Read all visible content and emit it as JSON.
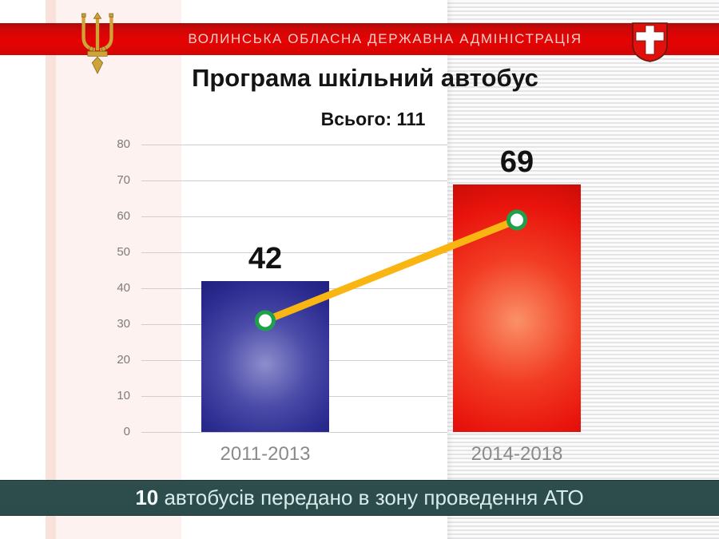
{
  "header": {
    "banner_text": "ВОЛИНСЬКА ОБЛАСНА ДЕРЖАВНА АДМІНІСТРАЦІЯ",
    "banner_color": "#d90505",
    "banner_text_color": "#f2cfc9",
    "trident_icon": "ukrainian-trident-gold",
    "coat_of_arms_icon": "volyn-shield-white-cross-on-red",
    "gold_color": "#d2a63c",
    "shield_red": "#e2100a"
  },
  "title": "Програма шкільний автобус",
  "subtitle": "Всього: 111",
  "chart_data": {
    "type": "bar",
    "categories": [
      "2011-2013",
      "2014-2018"
    ],
    "values": [
      42,
      69
    ],
    "value_labels": [
      "42",
      "69"
    ],
    "title": "Програма шкільний автобус",
    "subtitle_total": "Всього: 111",
    "ylim": [
      0,
      80
    ],
    "yticks": [
      0,
      10,
      20,
      30,
      40,
      50,
      60,
      70,
      80
    ],
    "grid": true,
    "legend": "none",
    "bar_gradients": [
      {
        "inner": "#8d8dcd",
        "mid": "#4a4aa8",
        "outer": "#2b2b90",
        "edge": "#20207c"
      },
      {
        "inner": "#fb9168",
        "mid": "#f23c23",
        "outer": "#e8130c",
        "edge": "#c90d07"
      }
    ],
    "connector_line": {
      "color": "#f9b511",
      "width": 9,
      "marker": "white-circle-green-ring",
      "marker_ring_color": "#1fa14c",
      "marker_values": [
        31,
        59
      ]
    }
  },
  "footer": {
    "highlight": "10",
    "rest": " автобусів передано в зону проведення АТО",
    "background": "#2c4c4b"
  }
}
